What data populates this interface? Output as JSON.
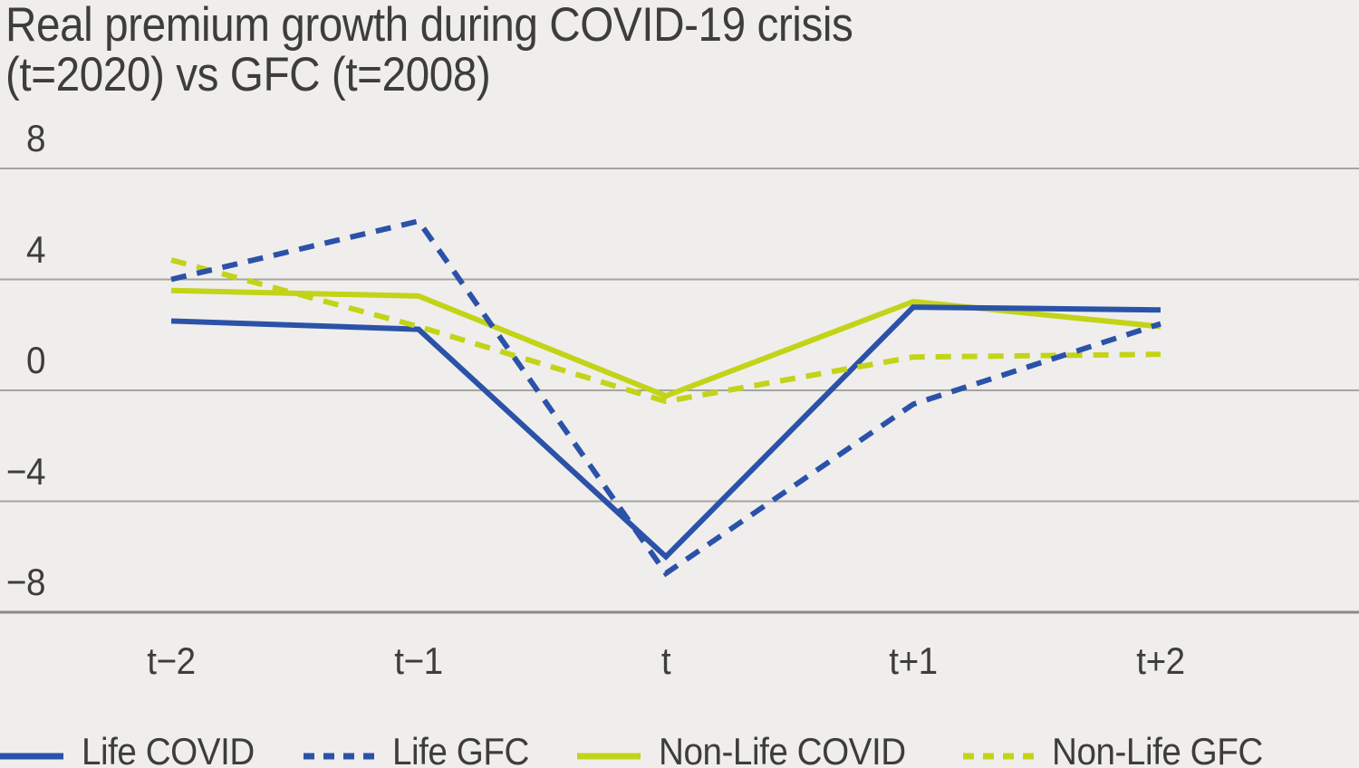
{
  "title": {
    "line1": "Real premium growth during COVID-19 crisis",
    "line2": "(t=2020) vs GFC (t=2008)"
  },
  "colors": {
    "background": "#efeeec",
    "text": "#3d3d3b",
    "gridline": "#a4a4a1",
    "baseline": "#8a8a87",
    "blue": "#2b52a8",
    "yellow_green": "#c3d318"
  },
  "axis": {
    "y_labels": [
      "8",
      "4",
      "0",
      "−4",
      "−8"
    ],
    "x_labels": [
      "t−2",
      "t−1",
      "t",
      "t+1",
      "t+2"
    ]
  },
  "chart_data": {
    "type": "line",
    "title": "Real premium growth during COVID-19 crisis (t=2020) vs GFC (t=2008)",
    "categories": [
      "t−2",
      "t−1",
      "t",
      "t+1",
      "t+2"
    ],
    "series": [
      {
        "name": "Life COVID",
        "style": "solid",
        "color": "#2b52a8",
        "values": [
          2.5,
          2.2,
          -6.0,
          3.0,
          2.9
        ]
      },
      {
        "name": "Life GFC",
        "style": "dashed",
        "color": "#2b52a8",
        "values": [
          4.0,
          6.1,
          -6.6,
          -0.5,
          2.4
        ]
      },
      {
        "name": "Non-Life COVID",
        "style": "solid",
        "color": "#c3d318",
        "values": [
          3.6,
          3.4,
          -0.2,
          3.2,
          2.3
        ]
      },
      {
        "name": "Non-Life GFC",
        "style": "dashed",
        "color": "#c3d318",
        "values": [
          4.7,
          2.3,
          -0.4,
          1.2,
          1.3
        ]
      }
    ],
    "yticks": [
      8,
      4,
      0,
      -4,
      -8
    ],
    "ylim": [
      -8.5,
      9.5
    ],
    "xlabel": "",
    "ylabel": "",
    "grid": "horizontal",
    "legend_position": "bottom"
  }
}
